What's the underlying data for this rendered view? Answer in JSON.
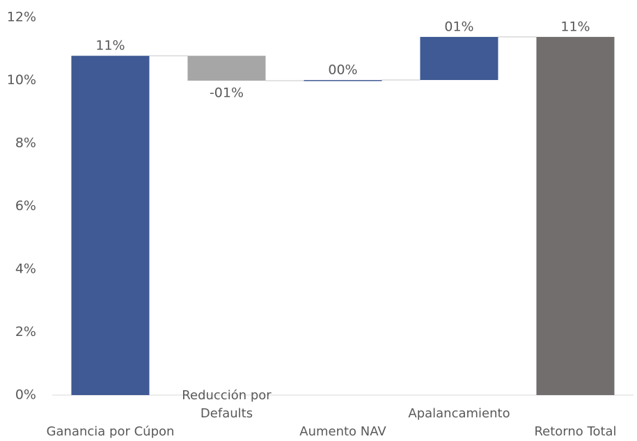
{
  "chart_data": {
    "type": "waterfall",
    "categories": [
      "Ganancia por Cúpon",
      "Reducción por\nDefaults",
      "Aumento NAV",
      "Apalancamiento",
      "Retorno Total"
    ],
    "values": [
      10.78,
      -0.79,
      0.02,
      1.37,
      11.38
    ],
    "value_labels": [
      "11%",
      "-01%",
      "00%",
      "01%",
      "11%"
    ],
    "colors": [
      "#3f5a94",
      "#a6a6a6",
      "#3f5a94",
      "#3f5a94",
      "#726e6d"
    ],
    "totals": [
      "Retorno Total"
    ],
    "ylim": [
      0,
      12
    ],
    "yticks": [
      {
        "value": 0,
        "label": "0%"
      },
      {
        "value": 2,
        "label": "2%"
      },
      {
        "value": 4,
        "label": "4%"
      },
      {
        "value": 6,
        "label": "6%"
      },
      {
        "value": 8,
        "label": "8%"
      },
      {
        "value": 10,
        "label": "10%"
      },
      {
        "value": 12,
        "label": "12%"
      }
    ],
    "grid": false
  }
}
